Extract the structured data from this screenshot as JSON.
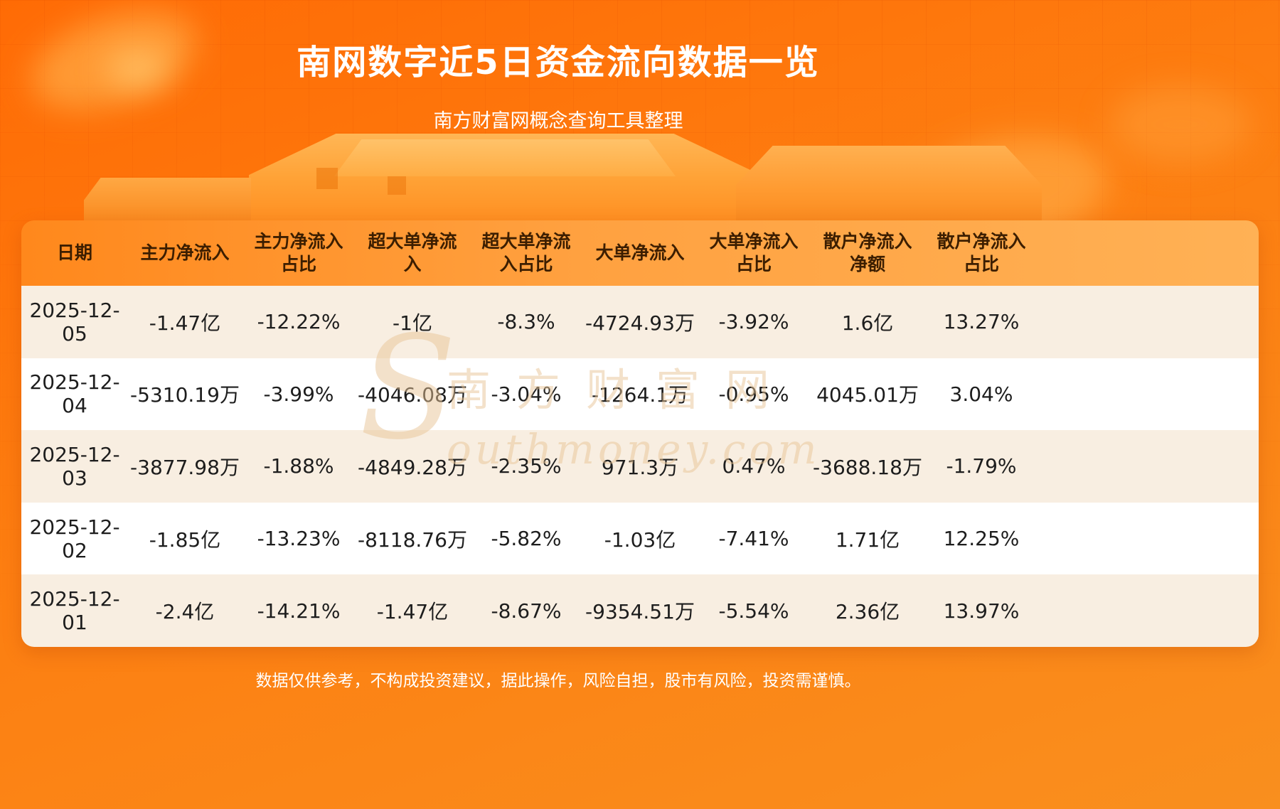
{
  "page": {
    "title": "南网数字近5日资金流向数据一览",
    "subtitle": "南方财富网概念查询工具整理",
    "footer": "数据仅供参考，不构成投资建议，据此操作，风险自担，股市有风险，投资需谨慎。"
  },
  "watermark": {
    "initial": "S",
    "cn": "南方财富网",
    "en": "outhmoney.com"
  },
  "colors": {
    "background_top": "#ff6b05",
    "background_bottom": "#f98f1e",
    "header_gradient_start": "#ff881c",
    "header_gradient_end": "#ffb155",
    "header_text": "#3c1e00",
    "row_odd": "#f8eee1",
    "row_even": "#ffffff",
    "cell_text": "#1d1d1d",
    "title_text": "#ffffff"
  },
  "chart_data": {
    "type": "table",
    "title": "南网数字近5日资金流向数据一览",
    "columns": [
      "日期",
      "主力净流入",
      "主力净流入占比",
      "超大单净流入",
      "超大单净流入占比",
      "大单净流入",
      "大单净流入占比",
      "散户净流入净额",
      "散户净流入占比"
    ],
    "header_lines": [
      "日期",
      "主力净流入",
      "主力净流入\n占比",
      "超大单净流\n入",
      "超大单净流\n入占比",
      "大单净流入",
      "大单净流入\n占比",
      "散户净流入\n净额",
      "散户净流入\n占比"
    ],
    "rows": [
      [
        "2025-12-05",
        "-1.47亿",
        "-12.22%",
        "-1亿",
        "-8.3%",
        "-4724.93万",
        "-3.92%",
        "1.6亿",
        "13.27%"
      ],
      [
        "2025-12-04",
        "-5310.19万",
        "-3.99%",
        "-4046.08万",
        "-3.04%",
        "-1264.1万",
        "-0.95%",
        "4045.01万",
        "3.04%"
      ],
      [
        "2025-12-03",
        "-3877.98万",
        "-1.88%",
        "-4849.28万",
        "-2.35%",
        "971.3万",
        "0.47%",
        "-3688.18万",
        "-1.79%"
      ],
      [
        "2025-12-02",
        "-1.85亿",
        "-13.23%",
        "-8118.76万",
        "-5.82%",
        "-1.03亿",
        "-7.41%",
        "1.71亿",
        "12.25%"
      ],
      [
        "2025-12-01",
        "-2.4亿",
        "-14.21%",
        "-1.47亿",
        "-8.67%",
        "-9354.51万",
        "-5.54%",
        "2.36亿",
        "13.97%"
      ]
    ]
  }
}
